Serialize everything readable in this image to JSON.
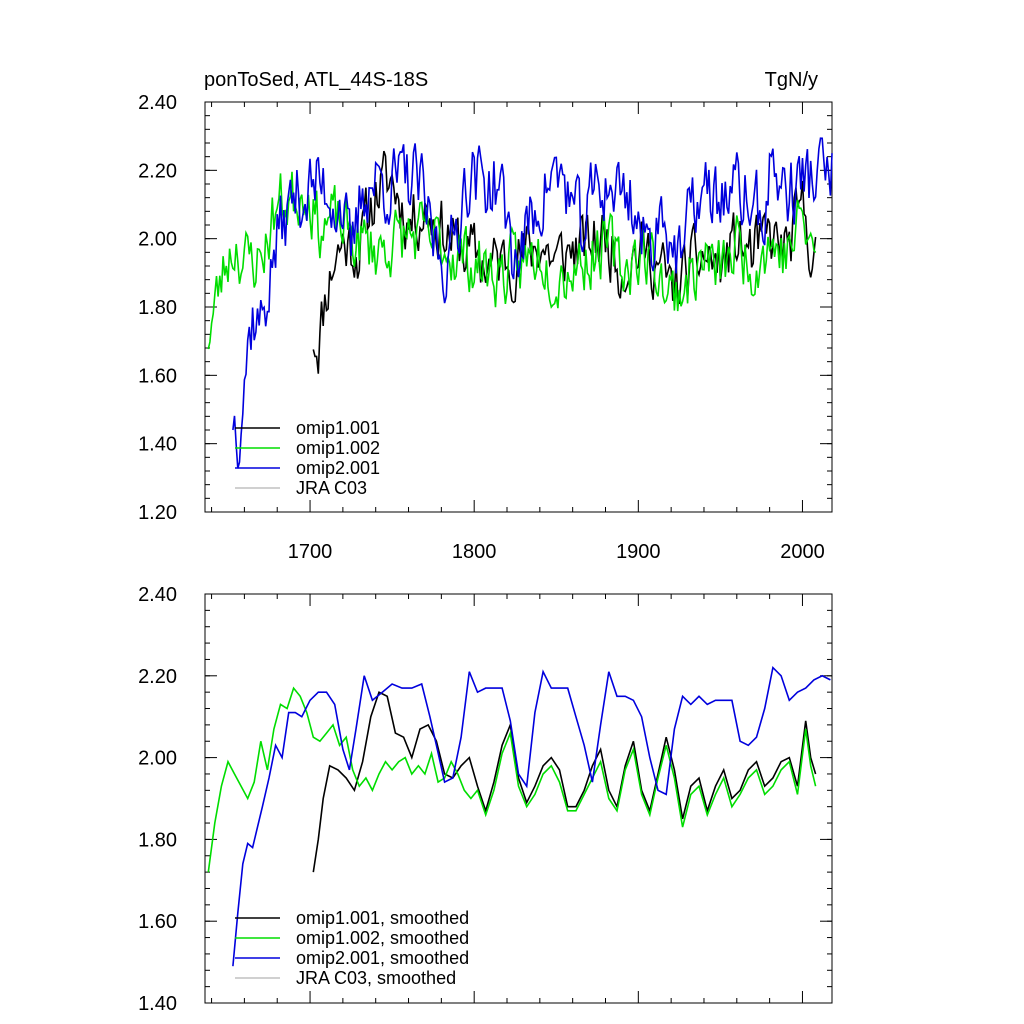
{
  "chart_data": [
    {
      "type": "line",
      "title_left": "ponToSed, ATL_44S-18S",
      "title_right": "TgN/y",
      "xlim": [
        1636,
        2018
      ],
      "ylim": [
        1.2,
        2.4
      ],
      "x_major_ticks": [
        1700,
        1800,
        1900,
        2000
      ],
      "x_tick_labels": [
        "1700",
        "1800",
        "1900",
        "2000"
      ],
      "y_major_ticks": [
        1.2,
        1.4,
        1.6,
        1.8,
        2.0,
        2.2,
        2.4
      ],
      "y_tick_labels": [
        "1.20",
        "1.40",
        "1.60",
        "1.80",
        "2.00",
        "2.20",
        "2.40"
      ],
      "grid": false,
      "legend_position": "bottom-left",
      "series": [
        {
          "name": "omip1.001",
          "color": "#000000",
          "noise": 0.085,
          "seed": 11,
          "x": [
            1702,
            1705,
            1710,
            1715,
            1720,
            1730,
            1740,
            1750,
            1760,
            1770,
            1790,
            1800,
            1810,
            1820,
            1830,
            1840,
            1850,
            1860,
            1870,
            1880,
            1890,
            1900,
            1910,
            1920,
            1930,
            1940,
            1950,
            1960,
            1970,
            1980,
            1990,
            2000,
            2008
          ],
          "y": [
            1.72,
            1.7,
            1.85,
            1.95,
            1.99,
            1.97,
            2.14,
            2.17,
            2.05,
            2.09,
            1.98,
            1.95,
            1.92,
            1.94,
            1.95,
            1.99,
            1.93,
            1.97,
            1.98,
            2.01,
            1.92,
            1.97,
            1.94,
            1.85,
            1.9,
            1.95,
            1.92,
            1.99,
            1.95,
            2.0,
            1.96,
            2.08,
            1.95
          ]
        },
        {
          "name": "omip1.002",
          "color": "#00dd00",
          "noise": 0.085,
          "seed": 23,
          "x": [
            1638,
            1645,
            1650,
            1655,
            1660,
            1670,
            1680,
            1690,
            1698,
            1705,
            1715,
            1730,
            1740,
            1750,
            1760,
            1770,
            1790,
            1800,
            1810,
            1820,
            1830,
            1840,
            1850,
            1860,
            1870,
            1880,
            1890,
            1900,
            1910,
            1920,
            1930,
            1940,
            1950,
            1960,
            1970,
            1980,
            1990,
            2000,
            2008
          ],
          "y": [
            1.72,
            1.86,
            1.95,
            1.99,
            1.93,
            1.94,
            2.1,
            2.12,
            2.16,
            2.04,
            2.05,
            1.99,
            1.97,
            1.99,
            2.01,
            2.0,
            1.96,
            1.93,
            1.9,
            1.9,
            1.92,
            1.97,
            1.9,
            1.92,
            1.95,
            1.99,
            1.91,
            1.96,
            1.93,
            1.83,
            1.88,
            1.94,
            1.9,
            1.98,
            1.93,
            1.99,
            1.95,
            2.06,
            1.93
          ]
        },
        {
          "name": "omip2.001",
          "color": "#0000dd",
          "noise": 0.1,
          "seed": 37,
          "x": [
            1653,
            1656,
            1660,
            1665,
            1670,
            1680,
            1690,
            1700,
            1710,
            1720,
            1725,
            1732,
            1740,
            1755,
            1765,
            1775,
            1785,
            1795,
            1805,
            1815,
            1825,
            1835,
            1845,
            1855,
            1865,
            1875,
            1885,
            1895,
            1905,
            1915,
            1925,
            1935,
            1945,
            1955,
            1965,
            1975,
            1982,
            1990,
            2000,
            2010,
            2018
          ],
          "y": [
            1.49,
            1.45,
            1.62,
            1.78,
            1.75,
            2.0,
            2.12,
            2.15,
            2.15,
            2.1,
            1.92,
            2.15,
            2.17,
            2.16,
            2.17,
            2.0,
            1.92,
            2.19,
            2.17,
            2.16,
            1.93,
            2.05,
            2.18,
            2.17,
            2.01,
            2.16,
            2.15,
            2.13,
            1.96,
            2.1,
            1.92,
            2.12,
            2.12,
            2.13,
            2.13,
            2.05,
            2.22,
            2.13,
            2.17,
            2.19,
            2.18
          ]
        },
        {
          "name": "JRA C03",
          "color": "#c0c0c0",
          "legend_only": true,
          "x": [],
          "y": []
        }
      ]
    },
    {
      "type": "line",
      "xlim": [
        1636,
        2018
      ],
      "ylim": [
        1.4,
        2.4
      ],
      "x_major_ticks": [
        1700,
        1800,
        1900,
        2000
      ],
      "x_tick_labels": [],
      "y_major_ticks": [
        1.4,
        1.6,
        1.8,
        2.0,
        2.2,
        2.4
      ],
      "y_tick_labels": [
        "1.40",
        "1.60",
        "1.80",
        "2.00",
        "2.20",
        "2.40"
      ],
      "grid": false,
      "legend_position": "bottom-left",
      "series": [
        {
          "name": "omip1.001, smoothed",
          "color": "#000000",
          "noise": 0.0,
          "seed": 0,
          "x": [
            1702,
            1705,
            1708,
            1712,
            1717,
            1722,
            1727,
            1732,
            1737,
            1742,
            1747,
            1752,
            1757,
            1762,
            1767,
            1772,
            1777,
            1782,
            1787,
            1792,
            1797,
            1802,
            1807,
            1812,
            1817,
            1822,
            1827,
            1832,
            1837,
            1842,
            1847,
            1852,
            1857,
            1862,
            1867,
            1872,
            1877,
            1882,
            1887,
            1892,
            1897,
            1902,
            1907,
            1912,
            1917,
            1922,
            1927,
            1932,
            1937,
            1942,
            1947,
            1952,
            1957,
            1962,
            1967,
            1972,
            1977,
            1982,
            1987,
            1992,
            1997,
            2002,
            2005,
            2008
          ],
          "y": [
            1.72,
            1.8,
            1.9,
            1.98,
            1.97,
            1.95,
            1.92,
            1.99,
            2.1,
            2.16,
            2.15,
            2.06,
            2.05,
            2.0,
            2.07,
            2.08,
            2.04,
            1.96,
            1.95,
            1.98,
            2.0,
            1.93,
            1.87,
            1.94,
            2.03,
            2.08,
            1.95,
            1.89,
            1.93,
            1.98,
            2.0,
            1.97,
            1.88,
            1.88,
            1.92,
            1.98,
            2.02,
            1.92,
            1.88,
            1.98,
            2.04,
            1.92,
            1.87,
            1.96,
            2.05,
            1.97,
            1.85,
            1.93,
            1.95,
            1.87,
            1.93,
            1.97,
            1.9,
            1.92,
            1.97,
            1.99,
            1.93,
            1.95,
            1.99,
            2.0,
            1.93,
            2.09,
            2.0,
            1.96
          ]
        },
        {
          "name": "omip1.002, smoothed",
          "color": "#00dd00",
          "noise": 0.0,
          "seed": 0,
          "x": [
            1638,
            1642,
            1646,
            1650,
            1654,
            1658,
            1662,
            1666,
            1670,
            1674,
            1678,
            1682,
            1686,
            1690,
            1694,
            1698,
            1702,
            1706,
            1710,
            1714,
            1718,
            1722,
            1726,
            1730,
            1734,
            1738,
            1742,
            1746,
            1750,
            1754,
            1758,
            1762,
            1766,
            1770,
            1774,
            1778,
            1782,
            1786,
            1790,
            1794,
            1798,
            1802,
            1807,
            1812,
            1817,
            1822,
            1827,
            1832,
            1837,
            1842,
            1847,
            1852,
            1857,
            1862,
            1867,
            1872,
            1877,
            1882,
            1887,
            1892,
            1897,
            1902,
            1907,
            1912,
            1917,
            1922,
            1927,
            1932,
            1937,
            1942,
            1947,
            1952,
            1957,
            1962,
            1967,
            1972,
            1977,
            1982,
            1987,
            1992,
            1997,
            2002,
            2005,
            2008
          ],
          "y": [
            1.72,
            1.84,
            1.93,
            1.99,
            1.96,
            1.93,
            1.9,
            1.94,
            2.04,
            1.97,
            2.07,
            2.13,
            2.12,
            2.17,
            2.15,
            2.11,
            2.05,
            2.04,
            2.06,
            2.08,
            2.03,
            2.05,
            1.97,
            1.93,
            1.95,
            1.92,
            1.96,
            1.99,
            1.97,
            1.99,
            2.0,
            1.96,
            1.98,
            1.96,
            2.01,
            1.94,
            1.95,
            1.99,
            1.96,
            1.92,
            1.9,
            1.92,
            1.86,
            1.92,
            2.01,
            2.06,
            1.93,
            1.88,
            1.91,
            1.96,
            1.98,
            1.94,
            1.87,
            1.87,
            1.91,
            1.95,
            1.99,
            1.9,
            1.87,
            1.97,
            2.02,
            1.91,
            1.86,
            1.95,
            2.03,
            1.95,
            1.83,
            1.91,
            1.93,
            1.86,
            1.91,
            1.95,
            1.88,
            1.91,
            1.95,
            1.97,
            1.91,
            1.93,
            1.97,
            1.99,
            1.91,
            2.07,
            1.98,
            1.93
          ]
        },
        {
          "name": "omip2.001, smoothed",
          "color": "#0000dd",
          "noise": 0.0,
          "seed": 0,
          "x": [
            1653,
            1656,
            1659,
            1662,
            1665,
            1668,
            1671,
            1675,
            1679,
            1683,
            1687,
            1691,
            1695,
            1700,
            1705,
            1710,
            1715,
            1720,
            1724,
            1728,
            1733,
            1738,
            1744,
            1750,
            1756,
            1762,
            1768,
            1773,
            1777,
            1782,
            1787,
            1792,
            1797,
            1802,
            1807,
            1812,
            1817,
            1822,
            1827,
            1832,
            1837,
            1842,
            1847,
            1852,
            1857,
            1862,
            1867,
            1872,
            1877,
            1882,
            1887,
            1892,
            1897,
            1902,
            1907,
            1912,
            1917,
            1922,
            1927,
            1932,
            1937,
            1942,
            1947,
            1952,
            1957,
            1962,
            1967,
            1972,
            1977,
            1982,
            1987,
            1992,
            1997,
            2002,
            2007,
            2012,
            2017
          ],
          "y": [
            1.49,
            1.62,
            1.74,
            1.79,
            1.78,
            1.83,
            1.88,
            1.95,
            2.03,
            2.0,
            2.11,
            2.11,
            2.1,
            2.14,
            2.16,
            2.16,
            2.13,
            2.02,
            1.97,
            2.07,
            2.2,
            2.14,
            2.16,
            2.18,
            2.17,
            2.17,
            2.18,
            2.1,
            2.03,
            1.94,
            1.95,
            2.05,
            2.21,
            2.16,
            2.17,
            2.17,
            2.17,
            2.09,
            1.96,
            1.93,
            2.11,
            2.21,
            2.17,
            2.17,
            2.17,
            2.1,
            2.03,
            1.94,
            2.08,
            2.21,
            2.15,
            2.15,
            2.14,
            2.1,
            2.0,
            1.92,
            1.91,
            2.07,
            2.15,
            2.13,
            2.15,
            2.13,
            2.14,
            2.14,
            2.14,
            2.04,
            2.03,
            2.05,
            2.12,
            2.22,
            2.2,
            2.14,
            2.16,
            2.17,
            2.19,
            2.2,
            2.19
          ]
        },
        {
          "name": "JRA C03, smoothed",
          "color": "#c0c0c0",
          "legend_only": true,
          "x": [],
          "y": []
        }
      ]
    }
  ]
}
